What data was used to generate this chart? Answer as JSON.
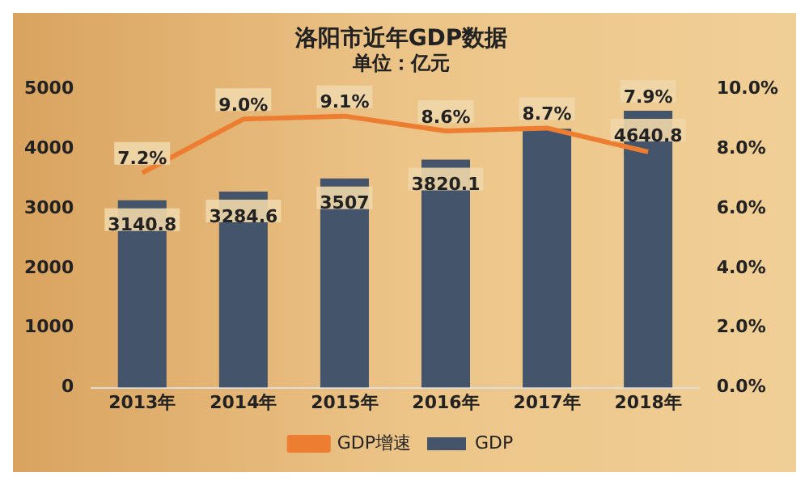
{
  "chart_data": {
    "type": "bar",
    "title": "洛阳市近年GDP数据",
    "subtitle": "单位：亿元",
    "categories": [
      "2013年",
      "2014年",
      "2015年",
      "2016年",
      "2017年",
      "2018年"
    ],
    "series": [
      {
        "name": "GDP",
        "color": "#44546a",
        "values": [
          3140.8,
          3284.6,
          3507,
          3820.1,
          4340,
          4640.8
        ],
        "value_labels": [
          "3140.8",
          "3284.6",
          "3507",
          "3820.1",
          null,
          "4640.8"
        ]
      },
      {
        "name": "GDP增速",
        "type": "line",
        "axis": "y2",
        "color": "#ed7d31",
        "values": [
          7.2,
          9.0,
          9.1,
          8.6,
          8.7,
          7.9
        ],
        "value_labels": [
          "7.2%",
          "9.0%",
          "9.1%",
          "8.6%",
          "8.7%",
          "7.9%"
        ]
      }
    ],
    "ylim": [
      0,
      5000
    ],
    "yticks": [
      0,
      1000,
      2000,
      3000,
      4000,
      5000
    ],
    "y2lim": [
      0,
      10
    ],
    "y2ticks": [
      {
        "value": 0,
        "label": "0.0%"
      },
      {
        "value": 2,
        "label": "2.0%"
      },
      {
        "value": 4,
        "label": "4.0%"
      },
      {
        "value": 6,
        "label": "6.0%"
      },
      {
        "value": 8,
        "label": "8.0%"
      },
      {
        "value": 10,
        "label": "10.0%"
      }
    ],
    "legend": "bottom",
    "grid": false,
    "marker": "none"
  }
}
